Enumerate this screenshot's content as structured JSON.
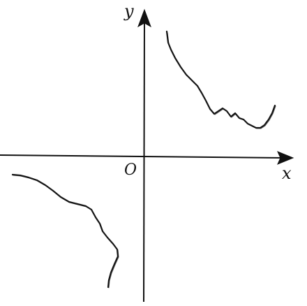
{
  "diagram": {
    "axis_labels": {
      "x": "x",
      "y": "y"
    },
    "origin_label": "O",
    "colors": {
      "ink": "#111111",
      "background": "#ffffff"
    }
  }
}
